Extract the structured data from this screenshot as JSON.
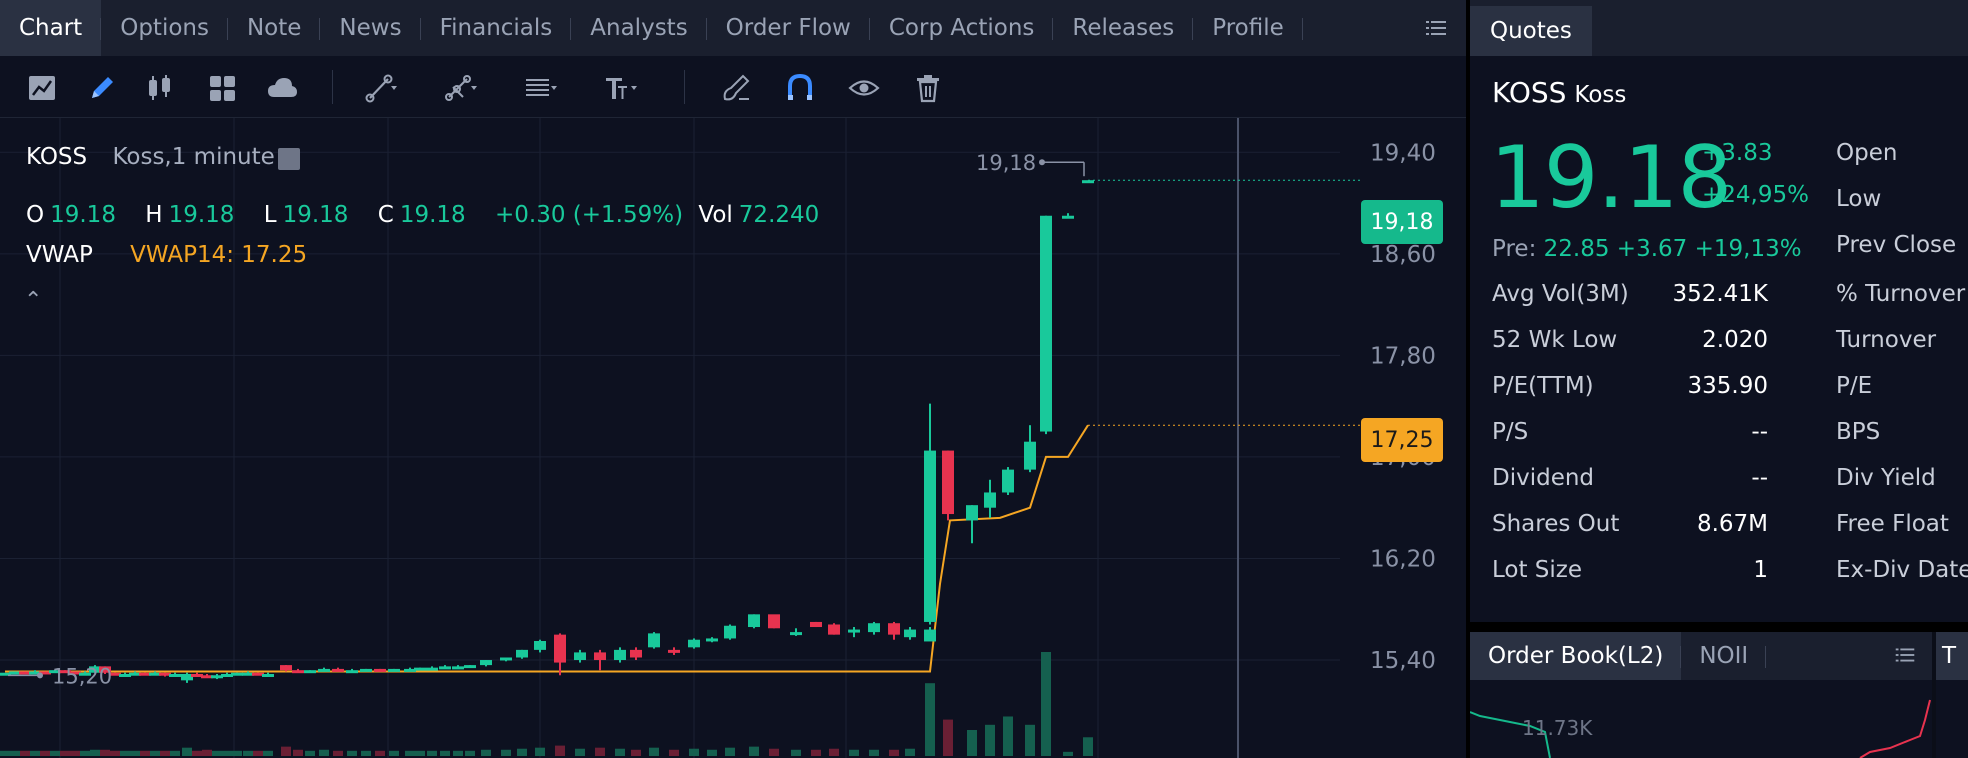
{
  "colors": {
    "up": "#19c99b",
    "down": "#e8334f",
    "vwap": "#f5a623",
    "background": "#0d1120",
    "tab_bg": "#1a1f2e",
    "tab_active_bg": "#2a3142"
  },
  "chart_tabs": [
    {
      "label": "Chart",
      "active": true
    },
    {
      "label": "Options"
    },
    {
      "label": "Note"
    },
    {
      "label": "News"
    },
    {
      "label": "Financials"
    },
    {
      "label": "Analysts"
    },
    {
      "label": "Order Flow"
    },
    {
      "label": "Corp Actions"
    },
    {
      "label": "Releases"
    },
    {
      "label": "Profile"
    }
  ],
  "toolbar_icons": [
    "chart-type-icon",
    "pencil-icon",
    "candlestick-icon",
    "layout-grid-icon",
    "cloud-icon",
    "trend-line-icon",
    "multi-line-icon",
    "fibonacci-icon",
    "text-tool-icon",
    "brush-icon",
    "magnet-icon",
    "eye-icon",
    "trash-icon"
  ],
  "legend": {
    "symbol": "KOSS",
    "description": "Koss,1 minute",
    "o_label": "O",
    "o_value": "19.18",
    "h_label": "H",
    "h_value": "19.18",
    "l_label": "L",
    "l_value": "19.18",
    "c_label": "C",
    "c_value": "19.18",
    "change": "+0.30 (+1.59%)",
    "vol_label": "Vol",
    "vol_value": "72.240",
    "vwap_label": "VWAP",
    "vwap_value": "VWAP14: 17.25"
  },
  "price_tags": {
    "last": "19,18",
    "vwap": "17,25"
  },
  "chart_data": {
    "type": "candlestick",
    "symbol": "KOSS",
    "interval": "1 minute",
    "y_ticks": [
      "19,40",
      "18,60",
      "17,80",
      "17,00",
      "16,20",
      "15,40"
    ],
    "y_tick_values": [
      19.4,
      18.6,
      17.8,
      17.0,
      16.2,
      15.4
    ],
    "ylim": [
      14.77,
      19.67
    ],
    "high_marker": "19,18",
    "high_value": 19.18,
    "low_marker": "15,20",
    "low_value": 15.2,
    "candles": [
      [
        5,
        15.3,
        15.3,
        15.3,
        15.3,
        0.5
      ],
      [
        15,
        15.3,
        15.31,
        15.29,
        15.31,
        0.5
      ],
      [
        25,
        15.31,
        15.31,
        15.3,
        15.3,
        0.5
      ],
      [
        35,
        15.3,
        15.32,
        15.3,
        15.31,
        0.5
      ],
      [
        45,
        15.31,
        15.31,
        15.29,
        15.3,
        0.5
      ],
      [
        55,
        15.3,
        15.32,
        15.3,
        15.32,
        0.5
      ],
      [
        65,
        15.32,
        15.32,
        15.3,
        15.31,
        0.5
      ],
      [
        75,
        15.31,
        15.31,
        15.29,
        15.29,
        0.5
      ],
      [
        85,
        15.29,
        15.31,
        15.29,
        15.3,
        0.5
      ],
      [
        95,
        15.3,
        15.36,
        15.3,
        15.35,
        0.6
      ],
      [
        105,
        15.35,
        15.35,
        15.29,
        15.3,
        0.6
      ],
      [
        115,
        15.3,
        15.3,
        15.28,
        15.28,
        0.5
      ],
      [
        125,
        15.28,
        15.3,
        15.27,
        15.29,
        0.5
      ],
      [
        135,
        15.29,
        15.31,
        15.28,
        15.3,
        0.5
      ],
      [
        145,
        15.3,
        15.3,
        15.28,
        15.29,
        0.5
      ],
      [
        155,
        15.29,
        15.31,
        15.28,
        15.3,
        0.5
      ],
      [
        165,
        15.3,
        15.3,
        15.27,
        15.28,
        0.5
      ],
      [
        175,
        15.28,
        15.3,
        15.27,
        15.29,
        0.5
      ],
      [
        187,
        15.24,
        15.3,
        15.22,
        15.29,
        0.8
      ],
      [
        197,
        15.29,
        15.3,
        15.27,
        15.28,
        0.5
      ],
      [
        207,
        15.28,
        15.29,
        15.26,
        15.27,
        0.6
      ],
      [
        217,
        15.27,
        15.29,
        15.25,
        15.28,
        0.5
      ],
      [
        227,
        15.28,
        15.3,
        15.27,
        15.29,
        0.5
      ],
      [
        237,
        15.29,
        15.3,
        15.28,
        15.3,
        0.5
      ],
      [
        248,
        15.3,
        15.31,
        15.29,
        15.3,
        0.5
      ],
      [
        258,
        15.3,
        15.3,
        15.28,
        15.29,
        0.5
      ],
      [
        268,
        15.29,
        15.3,
        15.28,
        15.29,
        0.5
      ],
      [
        286,
        15.36,
        15.36,
        15.31,
        15.32,
        0.9
      ],
      [
        298,
        15.32,
        15.33,
        15.3,
        15.31,
        0.6
      ],
      [
        310,
        15.31,
        15.32,
        15.3,
        15.32,
        0.5
      ],
      [
        324,
        15.32,
        15.34,
        15.31,
        15.33,
        0.6
      ],
      [
        338,
        15.33,
        15.34,
        15.32,
        15.32,
        0.5
      ],
      [
        352,
        15.32,
        15.33,
        15.31,
        15.32,
        0.5
      ],
      [
        366,
        15.32,
        15.33,
        15.31,
        15.33,
        0.5
      ],
      [
        380,
        15.33,
        15.33,
        15.32,
        15.32,
        0.5
      ],
      [
        394,
        15.32,
        15.33,
        15.31,
        15.33,
        0.5
      ],
      [
        410,
        15.33,
        15.34,
        15.32,
        15.33,
        0.5
      ],
      [
        420,
        15.33,
        15.34,
        15.32,
        15.34,
        0.5
      ],
      [
        432,
        15.34,
        15.35,
        15.33,
        15.34,
        0.5
      ],
      [
        445,
        15.34,
        15.36,
        15.33,
        15.35,
        0.5
      ],
      [
        458,
        15.35,
        15.36,
        15.34,
        15.35,
        0.5
      ],
      [
        470,
        15.35,
        15.36,
        15.34,
        15.36,
        0.5
      ],
      [
        486,
        15.36,
        15.4,
        15.35,
        15.4,
        0.6
      ],
      [
        506,
        15.4,
        15.42,
        15.39,
        15.42,
        0.6
      ],
      [
        522,
        15.42,
        15.48,
        15.41,
        15.48,
        0.7
      ],
      [
        540,
        15.48,
        15.56,
        15.46,
        15.55,
        0.8
      ],
      [
        560,
        15.6,
        15.61,
        15.28,
        15.38,
        1.0
      ],
      [
        580,
        15.4,
        15.48,
        15.38,
        15.46,
        0.7
      ],
      [
        600,
        15.46,
        15.48,
        15.32,
        15.4,
        0.8
      ],
      [
        620,
        15.4,
        15.5,
        15.38,
        15.48,
        0.7
      ],
      [
        636,
        15.48,
        15.5,
        15.4,
        15.42,
        0.6
      ],
      [
        654,
        15.5,
        15.62,
        15.49,
        15.61,
        0.8
      ],
      [
        674,
        15.48,
        15.5,
        15.44,
        15.46,
        0.6
      ],
      [
        694,
        15.5,
        15.57,
        15.49,
        15.56,
        0.7
      ],
      [
        712,
        15.56,
        15.58,
        15.54,
        15.57,
        0.6
      ],
      [
        730,
        15.57,
        15.68,
        15.56,
        15.67,
        0.8
      ],
      [
        754,
        15.66,
        15.76,
        15.65,
        15.76,
        0.9
      ],
      [
        774,
        15.76,
        15.72,
        15.65,
        15.65,
        0.7
      ],
      [
        796,
        15.6,
        15.65,
        15.59,
        15.62,
        0.6
      ],
      [
        816,
        15.7,
        15.7,
        15.66,
        15.66,
        0.6
      ],
      [
        834,
        15.68,
        15.69,
        15.6,
        15.6,
        0.7
      ],
      [
        854,
        15.62,
        15.66,
        15.58,
        15.64,
        0.6
      ],
      [
        874,
        15.62,
        15.7,
        15.6,
        15.69,
        0.6
      ],
      [
        894,
        15.69,
        15.7,
        15.56,
        15.6,
        0.6
      ],
      [
        910,
        15.58,
        15.66,
        15.56,
        15.64,
        0.7
      ],
      [
        930,
        15.6,
        15.6,
        15.56,
        15.56,
        0.8
      ],
      [
        930,
        15.56,
        15.6,
        15.55,
        15.57,
        0.7
      ],
      [
        930,
        15.57,
        15.6,
        15.56,
        15.58,
        0.6
      ],
      [
        930,
        15.58,
        15.62,
        15.56,
        15.6,
        0.6
      ],
      [
        930,
        15.6,
        15.64,
        15.58,
        15.62,
        0.6
      ],
      [
        930,
        15.62,
        15.66,
        15.6,
        15.64,
        0.6
      ]
    ],
    "spike_candles": [
      [
        930,
        15.7,
        17.42,
        15.68,
        17.05,
        7.0
      ],
      [
        948,
        17.05,
        17.05,
        16.5,
        16.55,
        3.5
      ],
      [
        972,
        16.5,
        16.62,
        16.32,
        16.62,
        2.5
      ],
      [
        990,
        16.6,
        16.82,
        16.52,
        16.72,
        3.0
      ],
      [
        1008,
        16.72,
        16.92,
        16.7,
        16.9,
        3.8
      ],
      [
        1030,
        16.9,
        17.25,
        16.88,
        17.12,
        3.0
      ],
      [
        1046,
        17.2,
        18.9,
        17.18,
        18.9,
        10.0
      ],
      [
        1068,
        18.9,
        18.92,
        18.88,
        18.9,
        0.4
      ],
      [
        1088,
        19.18,
        19.18,
        19.18,
        19.18,
        1.8
      ]
    ],
    "vwap": [
      [
        5,
        15.31
      ],
      [
        930,
        15.31
      ],
      [
        940,
        16.0
      ],
      [
        950,
        16.5
      ],
      [
        1000,
        16.52
      ],
      [
        1030,
        16.6
      ],
      [
        1046,
        17.0
      ],
      [
        1068,
        17.0
      ],
      [
        1088,
        17.25
      ]
    ],
    "volume_max": 10
  },
  "quotes": {
    "tab_label": "Quotes",
    "symbol": "KOSS",
    "name": "Koss",
    "price": "19.18",
    "change": "+3.83",
    "change_pct": "+24,95%",
    "pre_label": "Pre:",
    "pre_value": "22.85 +3.67 +19,13%",
    "stats": [
      {
        "label": "Avg Vol(3M)",
        "value": "352.41K"
      },
      {
        "label": "52 Wk Low",
        "value": "2.020"
      },
      {
        "label": "P/E(TTM)",
        "value": "335.90"
      },
      {
        "label": "P/S",
        "value": "--"
      },
      {
        "label": "Dividend",
        "value": "--"
      },
      {
        "label": "Shares Out",
        "value": "8.67M"
      },
      {
        "label": "Lot Size",
        "value": "1"
      }
    ],
    "right_labels": [
      "Open",
      "Low",
      "Prev Close",
      "% Turnover",
      "Turnover",
      "P/E",
      "BPS",
      "Div Yield",
      "Free Float",
      "Ex-Div Date"
    ]
  },
  "order_book": {
    "tabs": [
      {
        "label": "Order Book(L2)",
        "active": true
      },
      {
        "label": "NOII"
      }
    ],
    "size_label": "11.73K",
    "side_tab_label": "T"
  }
}
